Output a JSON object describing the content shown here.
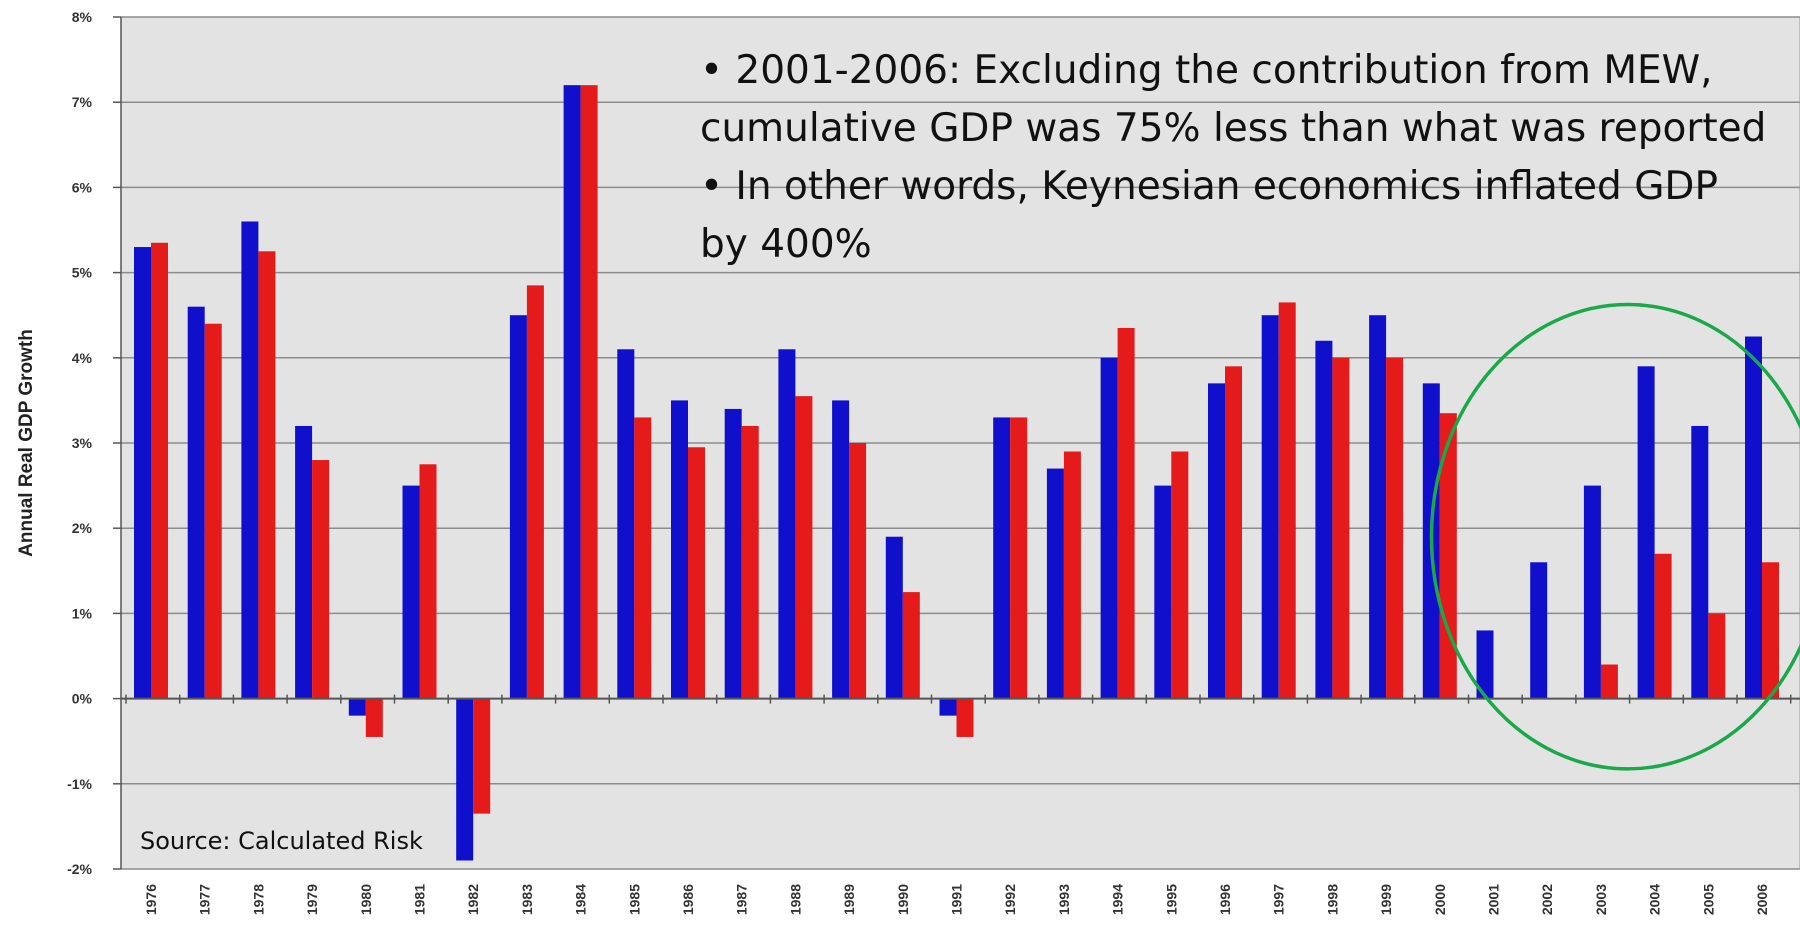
{
  "annotation": {
    "line1": "• 2001-2006: Excluding the contribution from MEW,",
    "line2": "cumulative GDP was 75% less than what was reported",
    "line3": "• In other words, Keynesian economics inflated GDP",
    "line4": "by 400%"
  },
  "source": "Source: Calculated Risk",
  "highlight": {
    "shape": "ellipse",
    "color": "#1aa84a",
    "covers_categories": [
      "2001",
      "2006"
    ]
  },
  "chart_data": {
    "type": "bar",
    "title": "",
    "xlabel": "",
    "ylabel": "Annual Real GDP Growth",
    "ylim": [
      -2,
      8
    ],
    "yticks": [
      "-2%",
      "-1%",
      "0%",
      "1%",
      "2%",
      "3%",
      "4%",
      "5%",
      "6%",
      "7%",
      "8%"
    ],
    "grid": true,
    "legend": "none",
    "colors": {
      "plot_bg": "#e3e3e3",
      "grid": "#8c8c8c",
      "series_a": "#1010cc",
      "series_b": "#e51b1b"
    },
    "categories": [
      "1976",
      "1977",
      "1978",
      "1979",
      "1980",
      "1981",
      "1982",
      "1983",
      "1984",
      "1985",
      "1986",
      "1987",
      "1988",
      "1989",
      "1990",
      "1991",
      "1992",
      "1993",
      "1994",
      "1995",
      "1996",
      "1997",
      "1998",
      "1999",
      "2000",
      "2001",
      "2002",
      "2003",
      "2004",
      "2005",
      "2006"
    ],
    "series": [
      {
        "values": [
          5.3,
          4.6,
          5.6,
          3.2,
          -0.2,
          2.5,
          -1.9,
          4.5,
          7.2,
          4.1,
          3.5,
          3.4,
          4.1,
          3.5,
          1.9,
          -0.2,
          3.3,
          2.7,
          4.0,
          2.5,
          3.7,
          4.5,
          4.2,
          4.5,
          3.7,
          0.8,
          1.6,
          2.5,
          3.9,
          3.2,
          4.25
        ]
      },
      {
        "values": [
          5.35,
          4.4,
          5.25,
          2.8,
          -0.45,
          2.75,
          -1.35,
          4.85,
          7.2,
          3.3,
          2.95,
          3.2,
          3.55,
          3.0,
          1.25,
          -0.45,
          3.3,
          2.9,
          4.35,
          2.9,
          3.9,
          4.65,
          4.0,
          4.0,
          3.35,
          0.0,
          0.0,
          0.4,
          1.7,
          1.0,
          1.6
        ]
      }
    ]
  }
}
